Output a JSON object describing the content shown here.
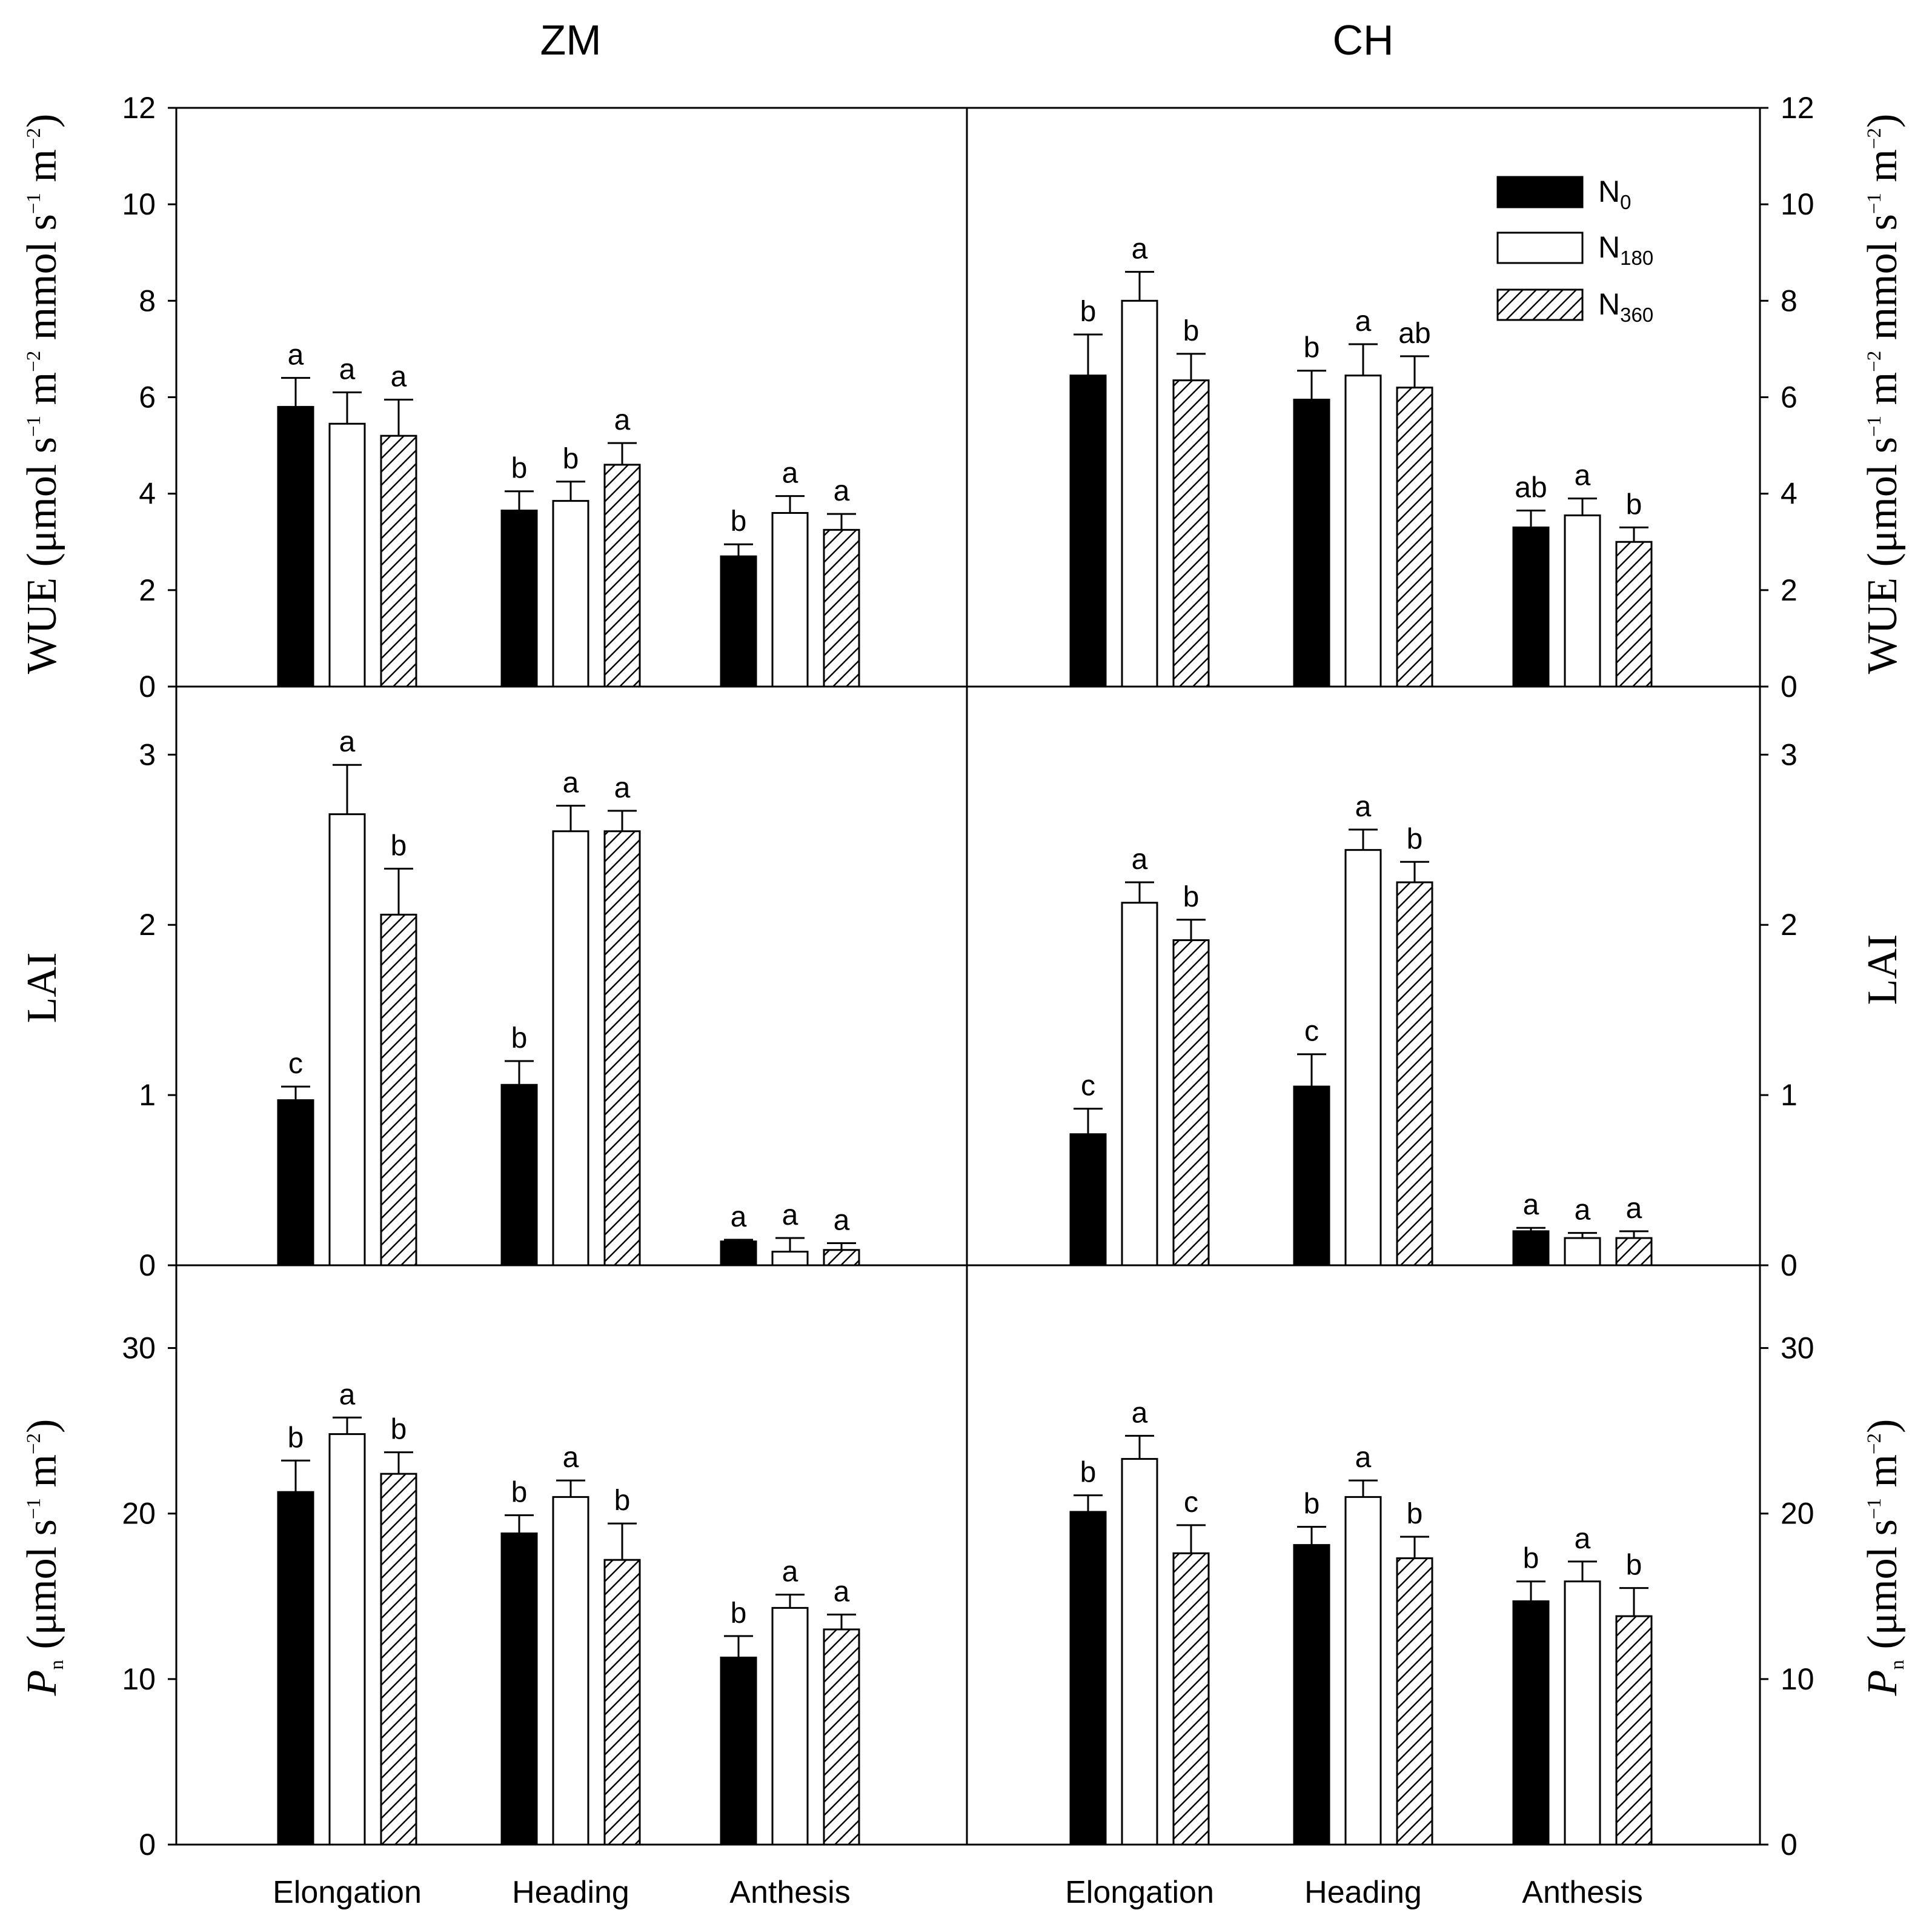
{
  "figure": {
    "panel_titles": [
      "ZM",
      "CH"
    ],
    "categories": [
      "Elongation",
      "Heading",
      "Anthesis"
    ],
    "legend": [
      {
        "base": "N",
        "sub": "0",
        "fill": "#000000"
      },
      {
        "base": "N",
        "sub": "180",
        "fill": "#ffffff"
      },
      {
        "base": "N",
        "sub": "360",
        "fill": "hatch"
      }
    ],
    "y_labels": {
      "wue": {
        "base": "WUE (μmol s",
        "sup1": "−1",
        "mid1": " m",
        "sup2": "−2",
        "mid2": " mmol s",
        "sup3": "−1",
        "mid3": " m",
        "sup4": "−2",
        "end": ")"
      },
      "lai": {
        "text": "LAI"
      },
      "pn": {
        "p": "P",
        "psub": "n",
        "base": " (μmol s",
        "sup1": "−1",
        "mid1": " m",
        "sup2": "−2",
        "end": ")"
      }
    },
    "colors": {
      "bar_dark": "#000000",
      "bar_light": "#ffffff",
      "stroke": "#000000"
    }
  },
  "chart_data": [
    {
      "type": "bar",
      "id": "wue",
      "ylim": [
        0,
        12
      ],
      "yticks": [
        0,
        2,
        4,
        6,
        8,
        10,
        12
      ],
      "ylabel": "WUE (μmol s−1 m−2 mmol s−1 m−2)",
      "categories": [
        "Elongation",
        "Heading",
        "Anthesis"
      ],
      "series_names": [
        "N0",
        "N180",
        "N360"
      ],
      "panels": [
        {
          "site": "ZM",
          "values": [
            [
              5.8,
              5.45,
              5.2
            ],
            [
              3.65,
              3.85,
              4.6
            ],
            [
              2.7,
              3.6,
              3.25
            ]
          ],
          "errors": [
            [
              0.6,
              0.65,
              0.75
            ],
            [
              0.4,
              0.4,
              0.45
            ],
            [
              0.25,
              0.35,
              0.33
            ]
          ],
          "letters": [
            [
              "a",
              "a",
              "a"
            ],
            [
              "b",
              "b",
              "a"
            ],
            [
              "b",
              "a",
              "a"
            ]
          ]
        },
        {
          "site": "CH",
          "values": [
            [
              6.45,
              8.0,
              6.35
            ],
            [
              5.95,
              6.45,
              6.2
            ],
            [
              3.3,
              3.55,
              3.0
            ]
          ],
          "errors": [
            [
              0.85,
              0.6,
              0.55
            ],
            [
              0.6,
              0.65,
              0.65
            ],
            [
              0.35,
              0.35,
              0.3
            ]
          ],
          "letters": [
            [
              "b",
              "a",
              "b"
            ],
            [
              "b",
              "a",
              "ab"
            ],
            [
              "ab",
              "a",
              "b"
            ]
          ]
        }
      ]
    },
    {
      "type": "bar",
      "id": "lai",
      "ylim": [
        0,
        3.4
      ],
      "yticks": [
        0,
        1,
        2,
        3
      ],
      "ylabel": "LAI",
      "categories": [
        "Elongation",
        "Heading",
        "Anthesis"
      ],
      "series_names": [
        "N0",
        "N180",
        "N360"
      ],
      "panels": [
        {
          "site": "ZM",
          "values": [
            [
              0.97,
              2.65,
              2.06
            ],
            [
              1.06,
              2.55,
              2.55
            ],
            [
              0.14,
              0.08,
              0.09
            ]
          ],
          "errors": [
            [
              0.08,
              0.29,
              0.27
            ],
            [
              0.14,
              0.15,
              0.12
            ],
            [
              0.01,
              0.08,
              0.04
            ]
          ],
          "letters": [
            [
              "c",
              "a",
              "b"
            ],
            [
              "b",
              "a",
              "a"
            ],
            [
              "a",
              "a",
              "a"
            ]
          ]
        },
        {
          "site": "CH",
          "values": [
            [
              0.77,
              2.13,
              1.91
            ],
            [
              1.05,
              2.44,
              2.25
            ],
            [
              0.2,
              0.16,
              0.16
            ]
          ],
          "errors": [
            [
              0.15,
              0.12,
              0.12
            ],
            [
              0.19,
              0.12,
              0.12
            ],
            [
              0.02,
              0.03,
              0.04
            ]
          ],
          "letters": [
            [
              "c",
              "a",
              "b"
            ],
            [
              "c",
              "a",
              "b"
            ],
            [
              "a",
              "a",
              "a"
            ]
          ]
        }
      ]
    },
    {
      "type": "bar",
      "id": "pn",
      "ylim": [
        0,
        35
      ],
      "yticks": [
        0,
        10,
        20,
        30
      ],
      "ylabel": "Pn (μmol s−1 m−2)",
      "categories": [
        "Elongation",
        "Heading",
        "Anthesis"
      ],
      "series_names": [
        "N0",
        "N180",
        "N360"
      ],
      "panels": [
        {
          "site": "ZM",
          "values": [
            [
              21.3,
              24.8,
              22.4
            ],
            [
              18.8,
              21.0,
              17.2
            ],
            [
              11.3,
              14.3,
              13.0
            ]
          ],
          "errors": [
            [
              1.9,
              1.0,
              1.3
            ],
            [
              1.1,
              1.0,
              2.2
            ],
            [
              1.3,
              0.8,
              0.9
            ]
          ],
          "letters": [
            [
              "b",
              "a",
              "b"
            ],
            [
              "b",
              "a",
              "b"
            ],
            [
              "b",
              "a",
              "a"
            ]
          ]
        },
        {
          "site": "CH",
          "values": [
            [
              20.1,
              23.3,
              17.6
            ],
            [
              18.1,
              21.0,
              17.3
            ],
            [
              14.7,
              15.9,
              13.8
            ]
          ],
          "errors": [
            [
              1.0,
              1.4,
              1.7
            ],
            [
              1.1,
              1.0,
              1.3
            ],
            [
              1.2,
              1.2,
              1.7
            ]
          ],
          "letters": [
            [
              "b",
              "a",
              "c"
            ],
            [
              "b",
              "a",
              "b"
            ],
            [
              "b",
              "a",
              "b"
            ]
          ]
        }
      ]
    }
  ]
}
